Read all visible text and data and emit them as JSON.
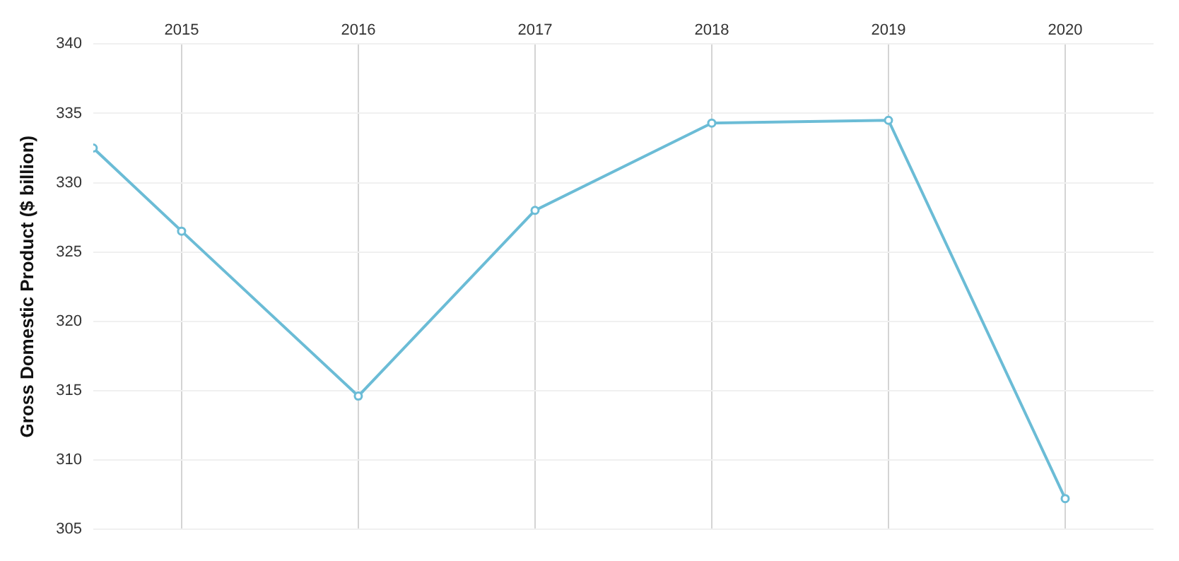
{
  "chart_data": {
    "type": "line",
    "ylabel": "Gross Domestic Product ($ billion)",
    "x": [
      2014.5,
      2015,
      2016,
      2017,
      2018,
      2019,
      2020
    ],
    "series": [
      {
        "color": "#6bbcd6",
        "values": [
          332.5,
          326.5,
          314.6,
          328.0,
          334.3,
          334.5,
          307.2
        ]
      }
    ],
    "xlim": [
      2014.5,
      2020.5
    ],
    "xticks": [
      2015,
      2016,
      2017,
      2018,
      2019,
      2020
    ],
    "ylim": [
      305,
      340
    ],
    "yticks": [
      305,
      310,
      315,
      320,
      325,
      330,
      335,
      340
    ],
    "grid": true,
    "marker": "circle",
    "line_style": "solid",
    "legend": false
  }
}
